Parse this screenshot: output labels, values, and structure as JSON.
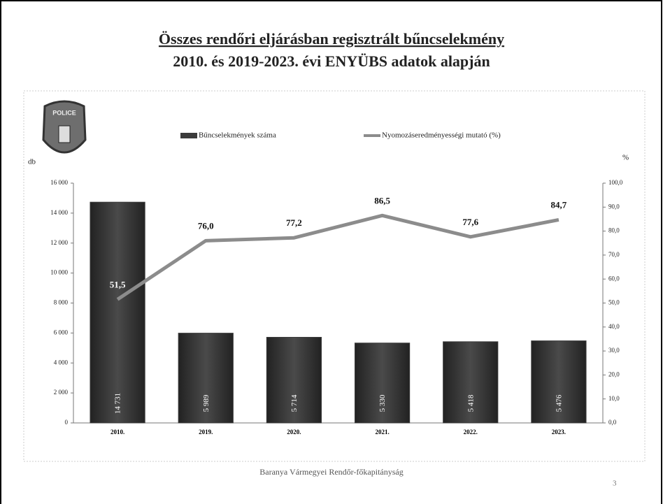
{
  "chart_data": {
    "type": "bar",
    "title": "Összes rendőri eljárásban regisztrált bűncselekmény",
    "subtitle": "2010. és 2019-2023. évi ENYÜBS adatok alapján",
    "badge_text": "POLICE",
    "y_label": "db",
    "y2_label": "%",
    "footer": "Baranya Vármegyei Rendőr-főkapitányság",
    "page_number": "3",
    "categories": [
      "2010.",
      "2019.",
      "2020.",
      "2021.",
      "2022.",
      "2023."
    ],
    "series": [
      {
        "name": "Bűncselekmények száma",
        "type": "bar",
        "color": "#3b3b3b",
        "values": [
          14731,
          5989,
          5714,
          5330,
          5418,
          5476
        ],
        "value_labels": [
          "14 731",
          "5 989",
          "5 714",
          "5 330",
          "5 418",
          "5 476"
        ]
      },
      {
        "name": "Nyomozáseredményességi mutató (%)",
        "type": "line",
        "axis": "y2",
        "color": "#8c8c8c",
        "values": [
          51.5,
          76.0,
          77.2,
          86.5,
          77.6,
          84.7
        ],
        "value_labels": [
          "51,5",
          "76,0",
          "77,2",
          "86,5",
          "77,6",
          "84,7"
        ]
      }
    ],
    "ylim": [
      0,
      16000
    ],
    "yticks": [
      0,
      {
        "value": 2000,
        "label": "2 000"
      },
      {
        "value": 4000,
        "label": "4 000"
      },
      {
        "value": 6000,
        "label": "6 000"
      },
      {
        "value": 8000,
        "label": "8 000"
      },
      {
        "value": 10000,
        "label": "10 000"
      },
      {
        "value": 12000,
        "label": "12 000"
      },
      {
        "value": 14000,
        "label": "14 000"
      },
      {
        "value": 16000,
        "label": "16 000"
      }
    ],
    "y2lim": [
      0,
      100
    ],
    "y2ticks": [
      {
        "value": 0,
        "label": "0,0"
      },
      {
        "value": 10,
        "label": "10,0"
      },
      {
        "value": 20,
        "label": "20,0"
      },
      {
        "value": 30,
        "label": "30,0"
      },
      {
        "value": 40,
        "label": "40,0"
      },
      {
        "value": 50,
        "label": "50,0"
      },
      {
        "value": 60,
        "label": "60,0"
      },
      {
        "value": 70,
        "label": "70,0"
      },
      {
        "value": 80,
        "label": "80,0"
      },
      {
        "value": 90,
        "label": "90,0"
      },
      {
        "value": 100,
        "label": "100,0"
      }
    ],
    "legend": "top"
  }
}
